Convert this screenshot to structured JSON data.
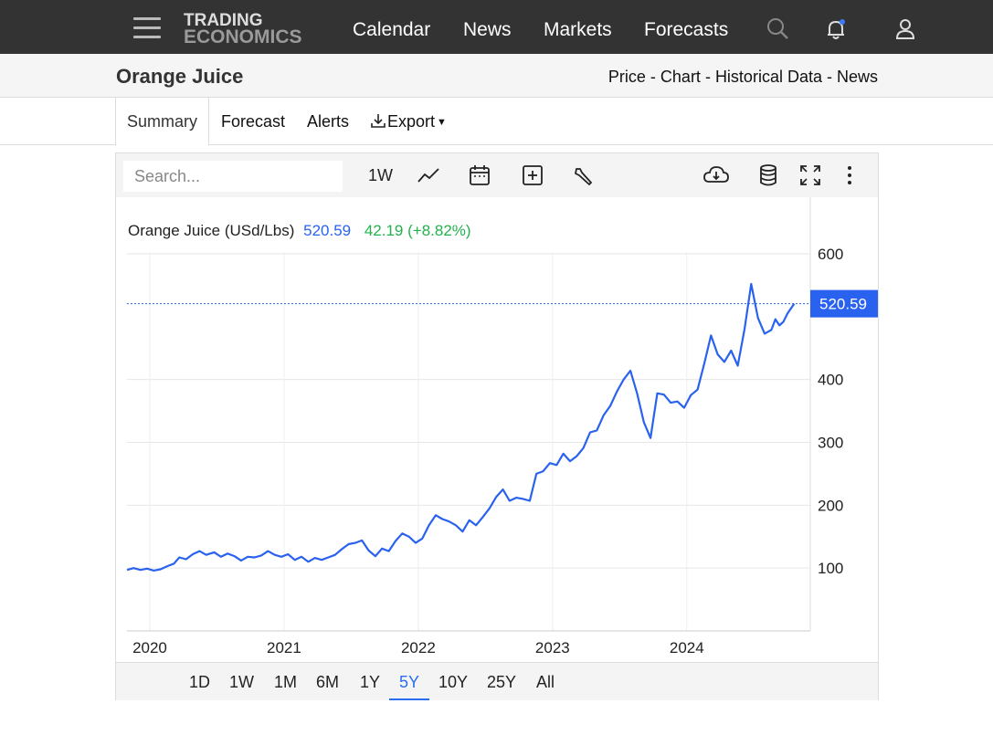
{
  "nav": {
    "logo_line1": "TRADING",
    "logo_line2": "ECONOMICS",
    "links": [
      "Calendar",
      "News",
      "Markets",
      "Forecasts"
    ]
  },
  "header": {
    "title": "Orange Juice",
    "subnav": [
      "Price",
      "Chart",
      "Historical Data",
      "News"
    ],
    "separator": " - "
  },
  "tabs": {
    "summary": "Summary",
    "forecast": "Forecast",
    "alerts": "Alerts",
    "export": "Export"
  },
  "toolbar": {
    "search_placeholder": "Search...",
    "interval": "1W"
  },
  "legend": {
    "name": "Orange Juice (USd/Lbs)",
    "price": "520.59",
    "change": "42.19 (+8.82%)"
  },
  "ranges": [
    "1D",
    "1W",
    "1M",
    "6M",
    "1Y",
    "5Y",
    "10Y",
    "25Y",
    "All"
  ],
  "active_range": "5Y",
  "colors": {
    "line": "#2a62f0",
    "change_positive": "#22b14c",
    "price_label_bg": "#2a62f0",
    "nav_bg": "#333333"
  },
  "chart_data": {
    "type": "line",
    "title": "Orange Juice (USd/Lbs)",
    "ylim": [
      0,
      690
    ],
    "yticks": [
      100,
      200,
      300,
      400,
      600
    ],
    "xlim": [
      2019.83,
      2024.92
    ],
    "xticks": [
      2020,
      2021,
      2022,
      2023,
      2024
    ],
    "last_value": 520.59,
    "grid": true,
    "series": [
      {
        "values_x": [
          2019.83,
          2019.88,
          2019.93,
          2019.98,
          2020.03,
          2020.08,
          2020.13,
          2020.18,
          2020.22,
          2020.27,
          2020.32,
          2020.37,
          2020.42,
          2020.48,
          2020.53,
          2020.58,
          2020.63,
          2020.68,
          2020.73,
          2020.78,
          2020.83,
          2020.88,
          2020.93,
          2020.98,
          2021.03,
          2021.08,
          2021.13,
          2021.18,
          2021.23,
          2021.28,
          2021.33,
          2021.38,
          2021.43,
          2021.48,
          2021.53,
          2021.58,
          2021.63,
          2021.68,
          2021.73,
          2021.78,
          2021.83,
          2021.88,
          2021.93,
          2021.98,
          2022.03,
          2022.08,
          2022.13,
          2022.18,
          2022.23,
          2022.28,
          2022.33,
          2022.38,
          2022.43,
          2022.48,
          2022.53,
          2022.58,
          2022.63,
          2022.68,
          2022.73,
          2022.78,
          2022.83,
          2022.88,
          2022.93,
          2022.98,
          2023.03,
          2023.08,
          2023.13,
          2023.18,
          2023.23,
          2023.28,
          2023.33,
          2023.38,
          2023.43,
          2023.48,
          2023.53,
          2023.58,
          2023.63,
          2023.68,
          2023.73,
          2023.78,
          2023.83,
          2023.88,
          2023.93,
          2023.98,
          2024.03,
          2024.08,
          2024.13,
          2024.18,
          2024.23,
          2024.28,
          2024.33,
          2024.38,
          2024.43,
          2024.48,
          2024.53,
          2024.58,
          2024.63,
          2024.66,
          2024.69,
          2024.72,
          2024.75,
          2024.8
        ],
        "values": [
          97,
          100,
          97,
          99,
          96,
          98,
          103,
          107,
          117,
          114,
          122,
          127,
          121,
          125,
          118,
          123,
          119,
          112,
          118,
          117,
          120,
          127,
          121,
          118,
          122,
          113,
          118,
          110,
          116,
          113,
          117,
          121,
          130,
          138,
          140,
          144,
          128,
          119,
          131,
          127,
          143,
          155,
          150,
          140,
          147,
          168,
          184,
          178,
          174,
          168,
          158,
          176,
          168,
          181,
          195,
          213,
          225,
          207,
          212,
          210,
          207,
          250,
          254,
          267,
          264,
          282,
          270,
          278,
          291,
          316,
          319,
          343,
          358,
          381,
          400,
          414,
          378,
          332,
          307,
          378,
          376,
          363,
          365,
          355,
          375,
          384,
          425,
          470,
          440,
          428,
          446,
          422,
          480,
          552,
          498,
          473,
          479,
          496,
          486,
          492,
          505,
          520.59
        ]
      }
    ]
  }
}
